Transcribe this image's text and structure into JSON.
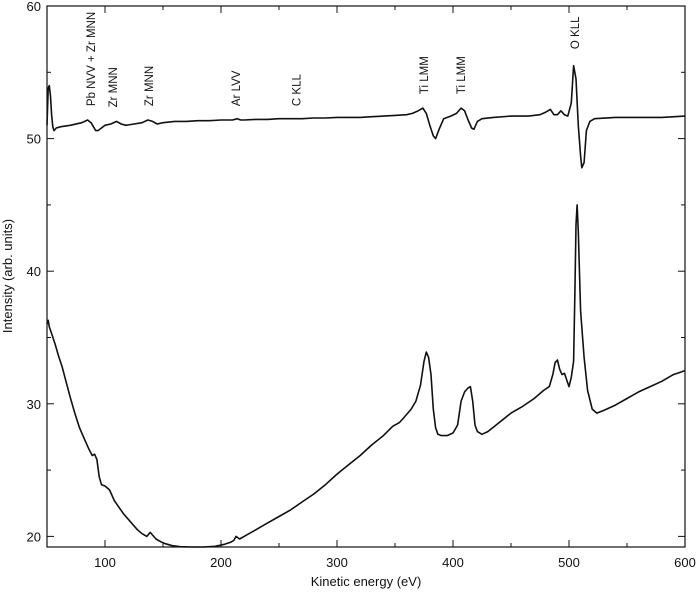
{
  "chart_data": {
    "type": "line",
    "title": "",
    "xlabel": "Kinetic energy (eV)",
    "ylabel": "Intensity (arb. units)",
    "xlim": [
      50,
      600
    ],
    "ylim": [
      19.2,
      60
    ],
    "x_ticks": [
      100,
      200,
      300,
      400,
      500,
      600
    ],
    "y_ticks": [
      20,
      30,
      40,
      50,
      60
    ],
    "grid": false,
    "legend": "none",
    "line_color": "#111111",
    "series": [
      {
        "points": [
          [
            50,
            51.0
          ],
          [
            51,
            53.8
          ],
          [
            52,
            54.0
          ],
          [
            53,
            53.2
          ],
          [
            54,
            51.8
          ],
          [
            55,
            50.9
          ],
          [
            56,
            50.6
          ],
          [
            58,
            50.8
          ],
          [
            62,
            50.9
          ],
          [
            70,
            51.0
          ],
          [
            80,
            51.2
          ],
          [
            85,
            51.4
          ],
          [
            88,
            51.2
          ],
          [
            90,
            50.9
          ],
          [
            92,
            50.6
          ],
          [
            94,
            50.6
          ],
          [
            97,
            50.8
          ],
          [
            100,
            51.0
          ],
          [
            105,
            51.1
          ],
          [
            110,
            51.3
          ],
          [
            114,
            51.1
          ],
          [
            118,
            51.0
          ],
          [
            125,
            51.1
          ],
          [
            132,
            51.2
          ],
          [
            137,
            51.4
          ],
          [
            141,
            51.3
          ],
          [
            145,
            51.1
          ],
          [
            150,
            51.2
          ],
          [
            160,
            51.3
          ],
          [
            170,
            51.3
          ],
          [
            180,
            51.35
          ],
          [
            190,
            51.35
          ],
          [
            200,
            51.4
          ],
          [
            210,
            51.4
          ],
          [
            214,
            51.5
          ],
          [
            217,
            51.4
          ],
          [
            220,
            51.4
          ],
          [
            230,
            51.45
          ],
          [
            240,
            51.45
          ],
          [
            250,
            51.5
          ],
          [
            260,
            51.5
          ],
          [
            270,
            51.5
          ],
          [
            280,
            51.55
          ],
          [
            290,
            51.55
          ],
          [
            300,
            51.6
          ],
          [
            310,
            51.6
          ],
          [
            320,
            51.6
          ],
          [
            330,
            51.65
          ],
          [
            340,
            51.7
          ],
          [
            350,
            51.75
          ],
          [
            360,
            51.8
          ],
          [
            365,
            51.9
          ],
          [
            370,
            52.1
          ],
          [
            374,
            52.3
          ],
          [
            377,
            51.9
          ],
          [
            380,
            51.0
          ],
          [
            383,
            50.2
          ],
          [
            385,
            50.0
          ],
          [
            388,
            50.7
          ],
          [
            392,
            51.5
          ],
          [
            398,
            51.7
          ],
          [
            403,
            51.9
          ],
          [
            407,
            52.3
          ],
          [
            410,
            52.1
          ],
          [
            413,
            51.4
          ],
          [
            416,
            50.8
          ],
          [
            418,
            50.7
          ],
          [
            421,
            51.3
          ],
          [
            425,
            51.5
          ],
          [
            435,
            51.6
          ],
          [
            450,
            51.7
          ],
          [
            465,
            51.7
          ],
          [
            475,
            51.8
          ],
          [
            480,
            52.0
          ],
          [
            484,
            52.2
          ],
          [
            487,
            51.8
          ],
          [
            490,
            51.8
          ],
          [
            493,
            52.1
          ],
          [
            496,
            51.8
          ],
          [
            499,
            51.7
          ],
          [
            502,
            52.7
          ],
          [
            504,
            55.5
          ],
          [
            506,
            54.5
          ],
          [
            508,
            51.0
          ],
          [
            510,
            48.7
          ],
          [
            511,
            47.8
          ],
          [
            513,
            48.2
          ],
          [
            515,
            50.6
          ],
          [
            518,
            51.3
          ],
          [
            522,
            51.5
          ],
          [
            540,
            51.6
          ],
          [
            560,
            51.6
          ],
          [
            580,
            51.6
          ],
          [
            600,
            51.7
          ]
        ]
      },
      {
        "points": [
          [
            50,
            36.0
          ],
          [
            51,
            36.3
          ],
          [
            52,
            35.8
          ],
          [
            54,
            35.3
          ],
          [
            57,
            34.5
          ],
          [
            60,
            33.6
          ],
          [
            63,
            32.8
          ],
          [
            66,
            31.8
          ],
          [
            70,
            30.5
          ],
          [
            74,
            29.3
          ],
          [
            78,
            28.2
          ],
          [
            82,
            27.4
          ],
          [
            86,
            26.6
          ],
          [
            89,
            26.1
          ],
          [
            91,
            26.2
          ],
          [
            93,
            25.8
          ],
          [
            95,
            24.5
          ],
          [
            97,
            23.9
          ],
          [
            100,
            23.8
          ],
          [
            104,
            23.5
          ],
          [
            108,
            22.7
          ],
          [
            112,
            22.2
          ],
          [
            116,
            21.7
          ],
          [
            120,
            21.3
          ],
          [
            124,
            20.9
          ],
          [
            128,
            20.5
          ],
          [
            132,
            20.2
          ],
          [
            136,
            20.0
          ],
          [
            139,
            20.3
          ],
          [
            141,
            20.1
          ],
          [
            144,
            19.8
          ],
          [
            148,
            19.6
          ],
          [
            152,
            19.45
          ],
          [
            158,
            19.3
          ],
          [
            165,
            19.22
          ],
          [
            175,
            19.2
          ],
          [
            185,
            19.2
          ],
          [
            195,
            19.25
          ],
          [
            203,
            19.4
          ],
          [
            208,
            19.55
          ],
          [
            211,
            19.7
          ],
          [
            213,
            20.0
          ],
          [
            216,
            19.8
          ],
          [
            222,
            20.1
          ],
          [
            230,
            20.5
          ],
          [
            240,
            21.0
          ],
          [
            250,
            21.5
          ],
          [
            260,
            22.0
          ],
          [
            270,
            22.6
          ],
          [
            280,
            23.2
          ],
          [
            290,
            23.9
          ],
          [
            300,
            24.7
          ],
          [
            310,
            25.4
          ],
          [
            320,
            26.1
          ],
          [
            330,
            26.9
          ],
          [
            340,
            27.6
          ],
          [
            348,
            28.3
          ],
          [
            354,
            28.6
          ],
          [
            358,
            29.0
          ],
          [
            364,
            29.6
          ],
          [
            368,
            30.2
          ],
          [
            372,
            31.4
          ],
          [
            375,
            33.2
          ],
          [
            377,
            33.9
          ],
          [
            379,
            33.5
          ],
          [
            381,
            32.2
          ],
          [
            383,
            29.6
          ],
          [
            385,
            28.2
          ],
          [
            387,
            27.7
          ],
          [
            390,
            27.6
          ],
          [
            395,
            27.6
          ],
          [
            400,
            27.8
          ],
          [
            404,
            28.4
          ],
          [
            407,
            30.2
          ],
          [
            410,
            30.9
          ],
          [
            413,
            31.2
          ],
          [
            415,
            31.3
          ],
          [
            417,
            30.2
          ],
          [
            419,
            28.4
          ],
          [
            421,
            27.9
          ],
          [
            425,
            27.7
          ],
          [
            430,
            27.9
          ],
          [
            440,
            28.6
          ],
          [
            450,
            29.3
          ],
          [
            460,
            29.8
          ],
          [
            470,
            30.4
          ],
          [
            478,
            31.0
          ],
          [
            483,
            31.3
          ],
          [
            486,
            32.2
          ],
          [
            488,
            33.1
          ],
          [
            490,
            33.3
          ],
          [
            492,
            32.6
          ],
          [
            494,
            32.2
          ],
          [
            496,
            32.3
          ],
          [
            498,
            31.8
          ],
          [
            500,
            31.3
          ],
          [
            502,
            32.0
          ],
          [
            504,
            33.2
          ],
          [
            505,
            38.0
          ],
          [
            506,
            43.5
          ],
          [
            507,
            45.0
          ],
          [
            508,
            43.0
          ],
          [
            510,
            37.0
          ],
          [
            513,
            33.5
          ],
          [
            516,
            31.0
          ],
          [
            520,
            29.6
          ],
          [
            524,
            29.3
          ],
          [
            530,
            29.5
          ],
          [
            540,
            29.9
          ],
          [
            550,
            30.4
          ],
          [
            560,
            30.9
          ],
          [
            570,
            31.3
          ],
          [
            580,
            31.7
          ],
          [
            590,
            32.2
          ],
          [
            600,
            32.5
          ]
        ]
      }
    ],
    "annotations": [
      {
        "text": "Pb NVV + Zr MNN",
        "x": 88,
        "y": 52.0
      },
      {
        "text": "Zr MNN",
        "x": 107,
        "y": 51.9
      },
      {
        "text": "Zr MNN",
        "x": 138,
        "y": 52.0
      },
      {
        "text": "Ar LVV",
        "x": 213,
        "y": 52.0
      },
      {
        "text": "C KLL",
        "x": 265,
        "y": 52.0
      },
      {
        "text": "Ti LMM",
        "x": 375,
        "y": 52.9
      },
      {
        "text": "Ti LMM",
        "x": 407,
        "y": 52.9
      },
      {
        "text": "O KLL",
        "x": 505,
        "y": 56.3
      }
    ]
  }
}
